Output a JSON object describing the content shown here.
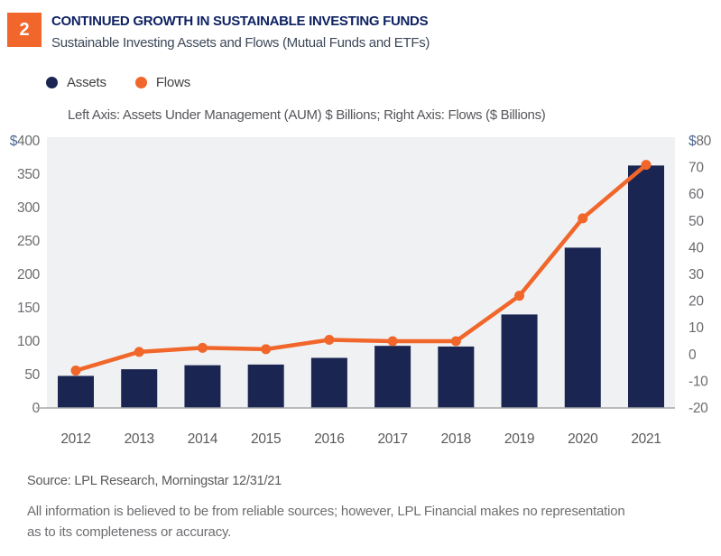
{
  "badge": {
    "number": "2",
    "color": "#f1662a"
  },
  "header": {
    "title": "CONTINUED GROWTH IN SUSTAINABLE INVESTING FUNDS",
    "subtitle": "Sustainable Investing Assets and Flows (Mutual Funds and ETFs)"
  },
  "legend": [
    {
      "label": "Assets",
      "color": "#1a2552"
    },
    {
      "label": "Flows",
      "color": "#f1662a"
    }
  ],
  "axis_note": "Left Axis: Assets Under Management (AUM) $ Billions; Right Axis: Flows ($ Billions)",
  "chart_data": {
    "type": "bar",
    "subtype": "bar+line dual axis",
    "categories": [
      "2012",
      "2013",
      "2014",
      "2015",
      "2016",
      "2017",
      "2018",
      "2019",
      "2020",
      "2021"
    ],
    "series": [
      {
        "name": "Assets",
        "type": "bar",
        "axis": "left",
        "color": "#1a2552",
        "values": [
          48,
          58,
          64,
          65,
          75,
          93,
          92,
          140,
          240,
          363
        ]
      },
      {
        "name": "Flows",
        "type": "line",
        "axis": "right",
        "color": "#f1662a",
        "values": [
          -6,
          1,
          2.5,
          2,
          5.5,
          5,
          5,
          22,
          51,
          71
        ]
      }
    ],
    "left_axis": {
      "min": 0,
      "max": 400,
      "step": 50,
      "prefix_on_top": "$",
      "label": "Assets Under Management (AUM) $ Billions"
    },
    "right_axis": {
      "min": -20,
      "max": 80,
      "step": 10,
      "prefix_on_top": "$",
      "label": "Flows ($ Billions)"
    },
    "grid": false,
    "legend_position": "top-left",
    "plot_bg": "#eff1f3",
    "axis_line_color": "#a6a8ab",
    "tick_color": "#6b6c6f",
    "dollar_color": "#4e6896",
    "year_label_color": "#58595b",
    "title": "Sustainable Investing Assets and Flows (Mutual Funds and ETFs)"
  },
  "footer": {
    "source": "Source: LPL Research, Morningstar  12/31/21",
    "disclaimer_lines": [
      "All information is believed to be from reliable sources; however, LPL Financial makes no representation",
      "as to its completeness or accuracy."
    ]
  }
}
